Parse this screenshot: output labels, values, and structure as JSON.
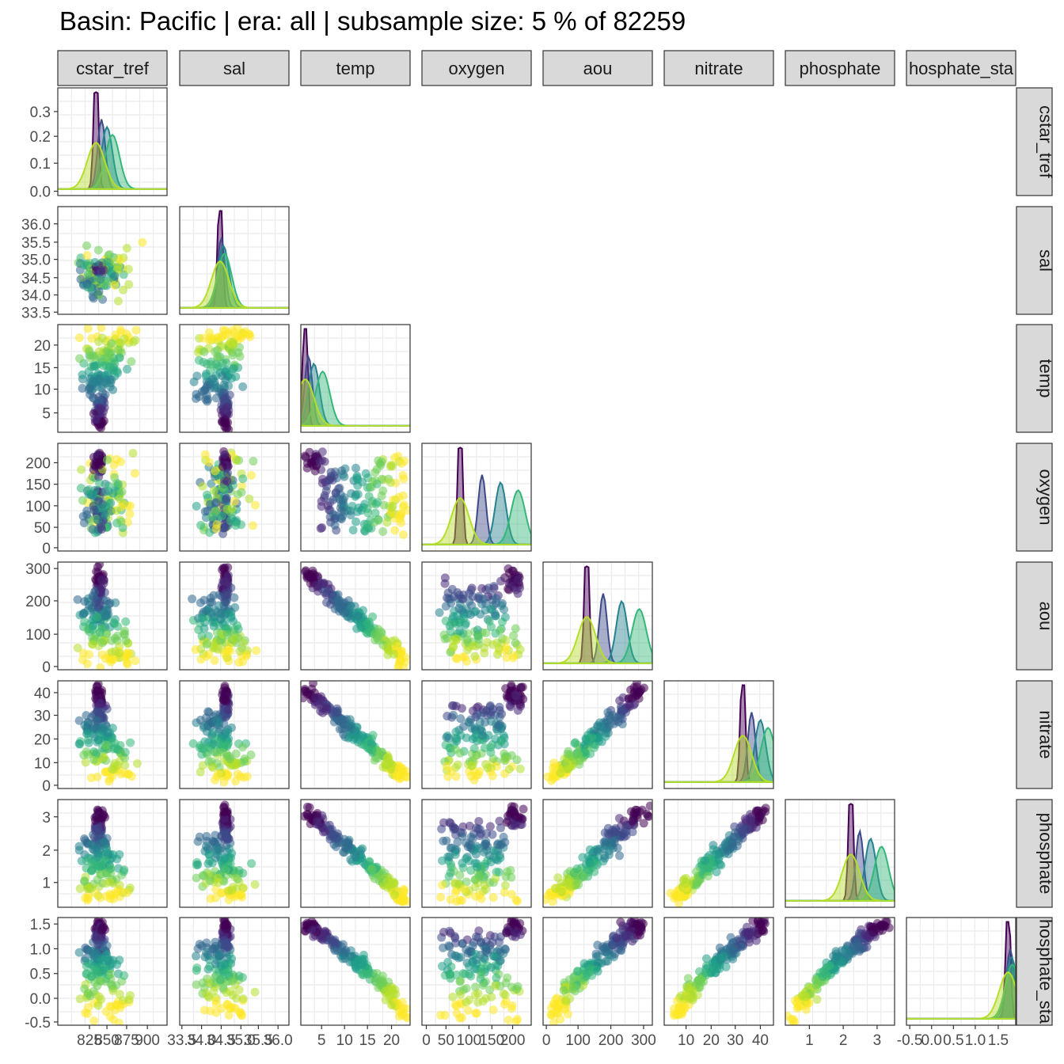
{
  "title": "Basin: Pacific | era: all | subsample size: 5 % of 82259",
  "chart_data": {
    "type": "scatter",
    "layout": "pairs-matrix-lower-triangle",
    "variables": [
      "cstar_tref",
      "sal",
      "temp",
      "oxygen",
      "aou",
      "nitrate",
      "phosphate",
      "phosphate_star"
    ],
    "column_strip_labels": [
      "cstar_tref",
      "sal",
      "temp",
      "oxygen",
      "aou",
      "nitrate",
      "phosphate",
      "hosphate_sta"
    ],
    "row_strip_labels": [
      "cstar_tref",
      "sal",
      "temp",
      "oxygen",
      "aou",
      "nitrate",
      "phosphate",
      "hosphate_sta"
    ],
    "x_ticks": {
      "cstar_tref": [
        "825",
        "850",
        "875",
        "900"
      ],
      "sal": [
        "33.5",
        "34.0",
        "34.5",
        "35.0",
        "35.5",
        "36.0"
      ],
      "temp": [
        "5",
        "10",
        "15",
        "20"
      ],
      "oxygen": [
        "0",
        "50",
        "100",
        "150",
        "200"
      ],
      "aou": [
        "0",
        "100",
        "200",
        "300"
      ],
      "nitrate": [
        "10",
        "20",
        "30",
        "40"
      ],
      "phosphate": [
        "1",
        "2",
        "3"
      ],
      "phosphate_star": [
        "-0.5",
        "0.0",
        "0.5",
        "1.0",
        "1.5"
      ]
    },
    "y_ticks": {
      "cstar_tref": [
        "0.0",
        "0.1",
        "0.2",
        "0.3"
      ],
      "sal": [
        "33.5",
        "34.0",
        "34.5",
        "35.0",
        "35.5",
        "36.0"
      ],
      "temp": [
        "5",
        "10",
        "15",
        "20"
      ],
      "oxygen": [
        "0",
        "50",
        "100",
        "150",
        "200"
      ],
      "aou": [
        "0",
        "100",
        "200",
        "300"
      ],
      "nitrate": [
        "0",
        "10",
        "20",
        "30",
        "40"
      ],
      "phosphate": [
        "1",
        "2",
        "3"
      ],
      "phosphate_star": [
        "-0.5",
        "0.0",
        "0.5",
        "1.0",
        "1.5"
      ]
    },
    "diagonal_density_ylim": [
      0,
      0.36
    ],
    "color_palette": [
      "#fde725",
      "#b5de2b",
      "#6ece58",
      "#35b779",
      "#1f9e89",
      "#26828e",
      "#31688e",
      "#3e4989",
      "#482878",
      "#440154"
    ],
    "background": "#ffffff",
    "panel_border": "#333333",
    "strip_fill": "#d9d9d9",
    "grid_color": "#ebebeb"
  }
}
